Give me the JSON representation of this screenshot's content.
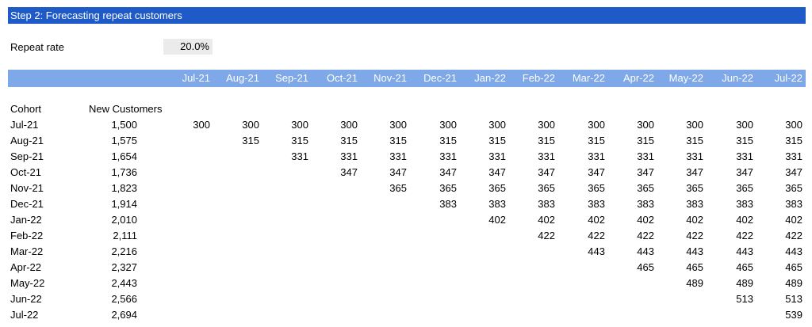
{
  "title": "Step 2: Forecasting repeat customers",
  "repeat_rate": {
    "label": "Repeat rate",
    "value": "20.0%"
  },
  "months": [
    "Jul-21",
    "Aug-21",
    "Sep-21",
    "Oct-21",
    "Nov-21",
    "Dec-21",
    "Jan-22",
    "Feb-22",
    "Mar-22",
    "Apr-22",
    "May-22",
    "Jun-22",
    "Jul-22"
  ],
  "headers": {
    "cohort": "Cohort",
    "new_customers": "New Customers"
  },
  "cohorts": [
    {
      "name": "Jul-21",
      "new": "1,500",
      "repeat": "300"
    },
    {
      "name": "Aug-21",
      "new": "1,575",
      "repeat": "315"
    },
    {
      "name": "Sep-21",
      "new": "1,654",
      "repeat": "331"
    },
    {
      "name": "Oct-21",
      "new": "1,736",
      "repeat": "347"
    },
    {
      "name": "Nov-21",
      "new": "1,823",
      "repeat": "365"
    },
    {
      "name": "Dec-21",
      "new": "1,914",
      "repeat": "383"
    },
    {
      "name": "Jan-22",
      "new": "2,010",
      "repeat": "402"
    },
    {
      "name": "Feb-22",
      "new": "2,111",
      "repeat": "422"
    },
    {
      "name": "Mar-22",
      "new": "2,216",
      "repeat": "443"
    },
    {
      "name": "Apr-22",
      "new": "2,327",
      "repeat": "465"
    },
    {
      "name": "May-22",
      "new": "2,443",
      "repeat": "489"
    },
    {
      "name": "Jun-22",
      "new": "2,566",
      "repeat": "513"
    },
    {
      "name": "Jul-22",
      "new": "2,694",
      "repeat": "539"
    }
  ]
}
